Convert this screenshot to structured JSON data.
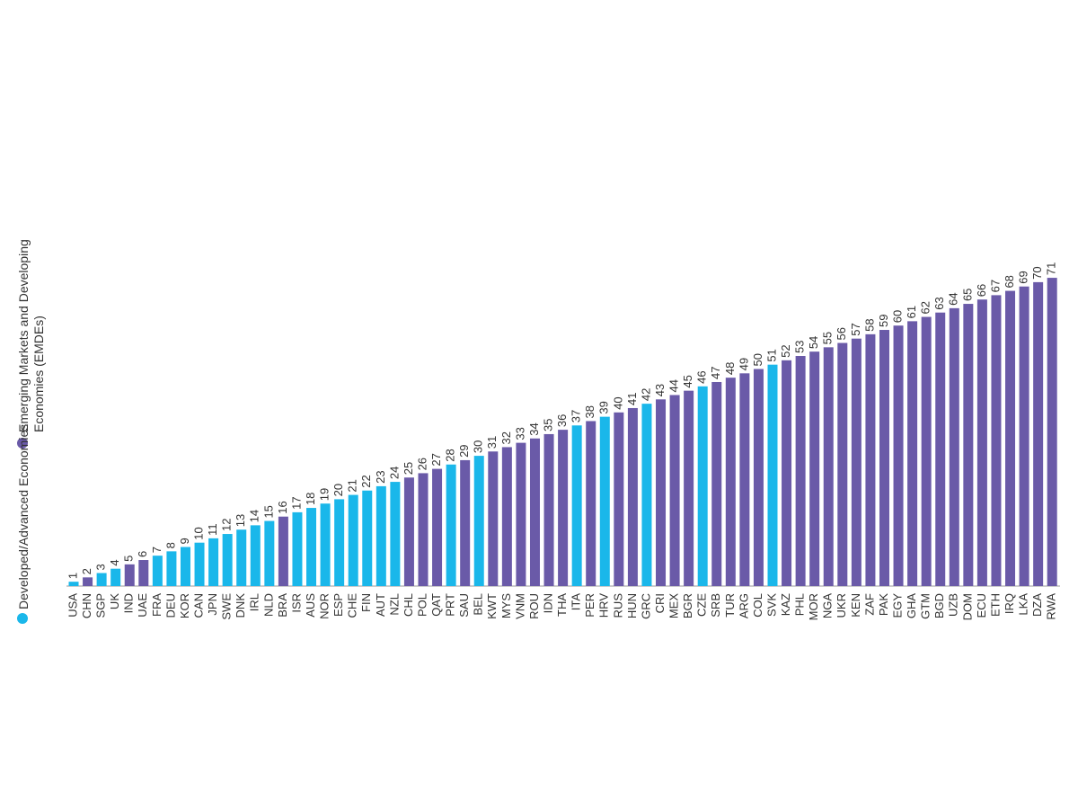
{
  "chart_data": {
    "type": "bar",
    "categories": [
      "USA",
      "CHN",
      "SGP",
      "UK",
      "IND",
      "UAE",
      "FRA",
      "DEU",
      "KOR",
      "CAN",
      "JPN",
      "SWE",
      "DNK",
      "IRL",
      "NLD",
      "BRA",
      "ISR",
      "AUS",
      "NOR",
      "ESP",
      "CHE",
      "FIN",
      "AUT",
      "NZL",
      "CHL",
      "POL",
      "QAT",
      "PRT",
      "SAU",
      "BEL",
      "KWT",
      "MYS",
      "VNM",
      "ROU",
      "IDN",
      "THA",
      "ITA",
      "PER",
      "HRV",
      "RUS",
      "HUN",
      "GRC",
      "CRI",
      "MEX",
      "BGR",
      "CZE",
      "SRB",
      "TUR",
      "ARG",
      "COL",
      "SVK",
      "KAZ",
      "PHL",
      "MOR",
      "NGA",
      "UKR",
      "KEN",
      "ZAF",
      "PAK",
      "EGY",
      "GHA",
      "GTM",
      "BGD",
      "UZB",
      "DOM",
      "ECU",
      "ETH",
      "IRQ",
      "LKA",
      "DZA",
      "RWA"
    ],
    "values": [
      1,
      2,
      3,
      4,
      5,
      6,
      7,
      8,
      9,
      10,
      11,
      12,
      13,
      14,
      15,
      16,
      17,
      18,
      19,
      20,
      21,
      22,
      23,
      24,
      25,
      26,
      27,
      28,
      29,
      30,
      31,
      32,
      33,
      34,
      35,
      36,
      37,
      38,
      39,
      40,
      41,
      42,
      43,
      44,
      45,
      46,
      47,
      48,
      49,
      50,
      51,
      52,
      53,
      54,
      55,
      56,
      57,
      58,
      59,
      60,
      61,
      62,
      63,
      64,
      65,
      66,
      67,
      68,
      69,
      70,
      71
    ],
    "colors": [
      "#1ab7ea",
      "#6a5aa8",
      "#1ab7ea",
      "#1ab7ea",
      "#6a5aa8",
      "#6a5aa8",
      "#1ab7ea",
      "#1ab7ea",
      "#1ab7ea",
      "#1ab7ea",
      "#1ab7ea",
      "#1ab7ea",
      "#1ab7ea",
      "#1ab7ea",
      "#1ab7ea",
      "#6a5aa8",
      "#1ab7ea",
      "#1ab7ea",
      "#1ab7ea",
      "#1ab7ea",
      "#1ab7ea",
      "#1ab7ea",
      "#1ab7ea",
      "#1ab7ea",
      "#6a5aa8",
      "#6a5aa8",
      "#6a5aa8",
      "#1ab7ea",
      "#6a5aa8",
      "#1ab7ea",
      "#6a5aa8",
      "#6a5aa8",
      "#6a5aa8",
      "#6a5aa8",
      "#6a5aa8",
      "#6a5aa8",
      "#1ab7ea",
      "#6a5aa8",
      "#1ab7ea",
      "#6a5aa8",
      "#6a5aa8",
      "#1ab7ea",
      "#6a5aa8",
      "#6a5aa8",
      "#6a5aa8",
      "#1ab7ea",
      "#6a5aa8",
      "#6a5aa8",
      "#6a5aa8",
      "#6a5aa8",
      "#1ab7ea",
      "#6a5aa8",
      "#6a5aa8",
      "#6a5aa8",
      "#6a5aa8",
      "#6a5aa8",
      "#6a5aa8",
      "#6a5aa8",
      "#6a5aa8",
      "#6a5aa8",
      "#6a5aa8",
      "#6a5aa8",
      "#6a5aa8",
      "#6a5aa8",
      "#6a5aa8",
      "#6a5aa8",
      "#6a5aa8",
      "#6a5aa8",
      "#6a5aa8",
      "#6a5aa8",
      "#6a5aa8"
    ],
    "legend": [
      {
        "name": "Developed/Advanced Economies",
        "color": "#1ab7ea"
      },
      {
        "name": "Emerging Markets and Developing Economies (EMDEs)",
        "color": "#6a5aa8"
      }
    ]
  }
}
